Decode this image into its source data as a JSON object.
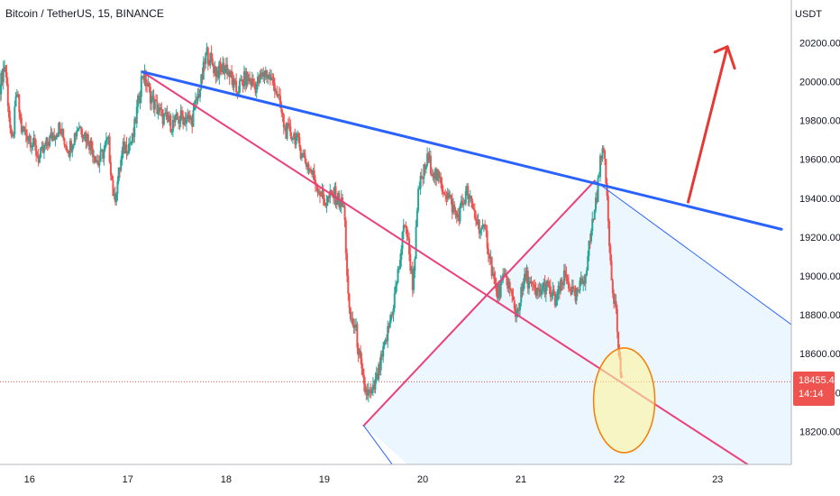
{
  "header": {
    "symbol_title": "Bitcoin / TetherUS, 15, BINANCE",
    "unit": "USDT"
  },
  "last_price": {
    "value_label": "18455.47",
    "countdown": "14:14",
    "value": 18455.47
  },
  "colors": {
    "up_candle": "#26a69a",
    "down_candle": "#ef5350",
    "resistance_line": "#2962ff",
    "pink_lines": "#ec407a",
    "arrow": "#e53935",
    "triangle_fill": "#e3f2fd",
    "highlight_circle_fill": "#fff59d",
    "highlight_circle_stroke": "#f57c00"
  },
  "chart_data": {
    "type": "candlestick",
    "title": "Bitcoin / TetherUS, 15, BINANCE",
    "xlabel": "",
    "ylabel": "USDT",
    "x_ticks": [
      "16",
      "17",
      "18",
      "19",
      "20",
      "21",
      "22",
      "23"
    ],
    "x_range": [
      15.7,
      23.75
    ],
    "y_ticks": [
      18200,
      18400,
      18600,
      18800,
      19000,
      19200,
      19400,
      19600,
      19800,
      20000,
      20200
    ],
    "y_tick_labels": [
      "18200.00",
      "18400.00",
      "18600.00",
      "18800.00",
      "19000.00",
      "19200.00",
      "19400.00",
      "19600.00",
      "19800.00",
      "20000.00",
      "20200.00"
    ],
    "ylim": [
      18030,
      20420
    ],
    "grid": false,
    "price_path": [
      [
        15.7,
        19980
      ],
      [
        15.75,
        20100
      ],
      [
        15.82,
        19650
      ],
      [
        15.87,
        19950
      ],
      [
        15.92,
        19750
      ],
      [
        16.0,
        19720
      ],
      [
        16.1,
        19600
      ],
      [
        16.2,
        19700
      ],
      [
        16.3,
        19760
      ],
      [
        16.4,
        19650
      ],
      [
        16.5,
        19780
      ],
      [
        16.6,
        19700
      ],
      [
        16.7,
        19580
      ],
      [
        16.8,
        19700
      ],
      [
        16.86,
        19380
      ],
      [
        16.95,
        19650
      ],
      [
        17.05,
        19700
      ],
      [
        17.15,
        20050
      ],
      [
        17.25,
        19900
      ],
      [
        17.35,
        19820
      ],
      [
        17.45,
        19780
      ],
      [
        17.55,
        19820
      ],
      [
        17.65,
        19800
      ],
      [
        17.75,
        20000
      ],
      [
        17.8,
        20150
      ],
      [
        17.9,
        20050
      ],
      [
        18.0,
        20080
      ],
      [
        18.1,
        19950
      ],
      [
        18.2,
        20020
      ],
      [
        18.3,
        19980
      ],
      [
        18.4,
        20050
      ],
      [
        18.5,
        19980
      ],
      [
        18.6,
        19750
      ],
      [
        18.7,
        19720
      ],
      [
        18.8,
        19600
      ],
      [
        18.9,
        19500
      ],
      [
        19.0,
        19380
      ],
      [
        19.1,
        19420
      ],
      [
        19.2,
        19350
      ],
      [
        19.25,
        18800
      ],
      [
        19.32,
        18720
      ],
      [
        19.4,
        18420
      ],
      [
        19.48,
        18380
      ],
      [
        19.55,
        18500
      ],
      [
        19.62,
        18650
      ],
      [
        19.7,
        18850
      ],
      [
        19.76,
        19050
      ],
      [
        19.82,
        19300
      ],
      [
        19.9,
        18950
      ],
      [
        19.96,
        19450
      ],
      [
        20.05,
        19600
      ],
      [
        20.15,
        19500
      ],
      [
        20.25,
        19420
      ],
      [
        20.35,
        19300
      ],
      [
        20.45,
        19430
      ],
      [
        20.55,
        19280
      ],
      [
        20.65,
        19200
      ],
      [
        20.75,
        18900
      ],
      [
        20.85,
        19000
      ],
      [
        20.95,
        18800
      ],
      [
        21.05,
        19000
      ],
      [
        21.15,
        18900
      ],
      [
        21.25,
        18950
      ],
      [
        21.35,
        18870
      ],
      [
        21.45,
        19000
      ],
      [
        21.55,
        18880
      ],
      [
        21.65,
        19000
      ],
      [
        21.72,
        19250
      ],
      [
        21.78,
        19450
      ],
      [
        21.83,
        19700
      ],
      [
        21.87,
        19450
      ],
      [
        21.92,
        19000
      ],
      [
        21.97,
        18800
      ],
      [
        22.0,
        18560
      ],
      [
        22.03,
        18455.47
      ]
    ],
    "annotations": {
      "resistance_line": [
        [
          17.15,
          20050
        ],
        [
          23.65,
          19240
        ]
      ],
      "pink_upper_line": [
        [
          17.15,
          20050
        ],
        [
          23.55,
          17950
        ]
      ],
      "pink_rising_line": [
        [
          19.4,
          18230
        ],
        [
          21.75,
          19490
        ]
      ],
      "blue_thin_projection": [
        [
          21.75,
          19490
        ],
        [
          23.75,
          18750
        ]
      ],
      "blue_thin_down": [
        [
          19.4,
          18230
        ],
        [
          19.85,
          17920
        ]
      ],
      "arrow": [
        [
          22.7,
          19380
        ],
        [
          23.1,
          20180
        ]
      ],
      "highlight_ellipse_center": [
        22.05,
        18360
      ]
    }
  }
}
